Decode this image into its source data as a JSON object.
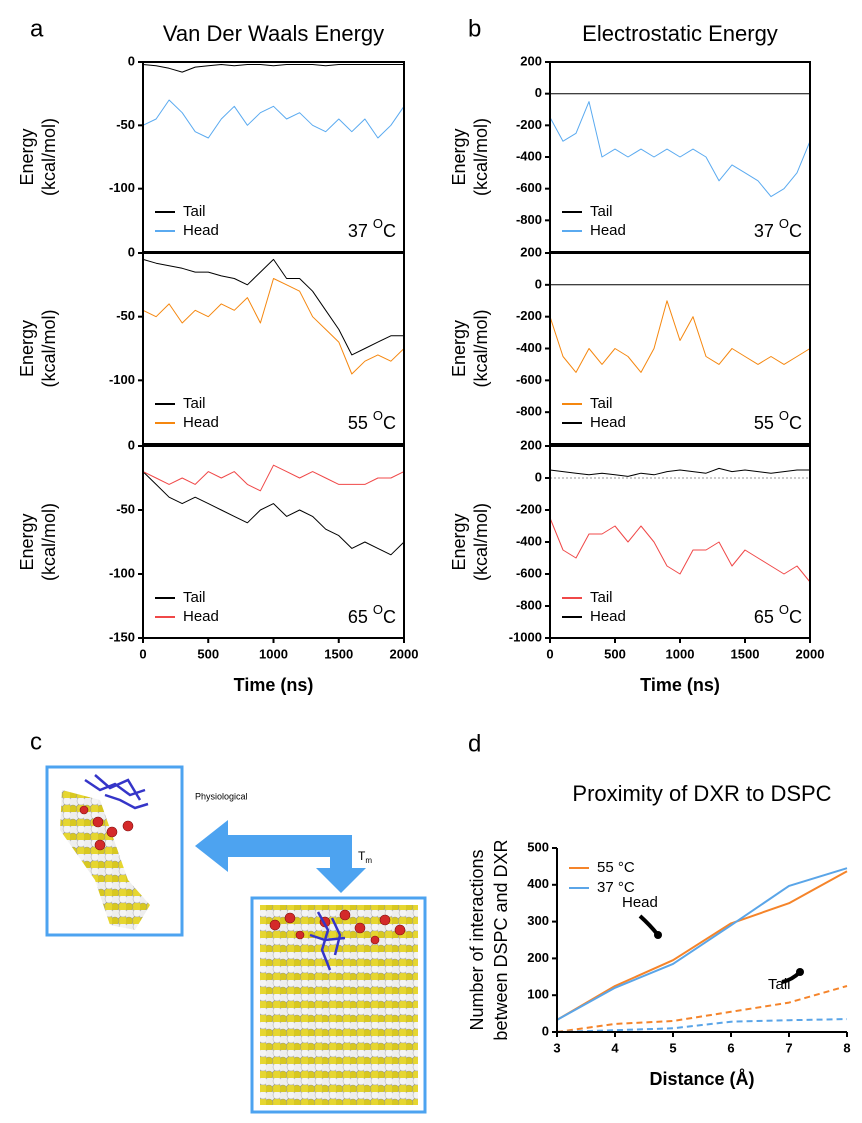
{
  "figure": {
    "panel_labels": [
      "a",
      "b",
      "c",
      "d"
    ],
    "diagram": {
      "top_label": "Physiological",
      "arrow_label": {
        "text": "T",
        "sub": "m"
      }
    }
  },
  "chart_data": [
    {
      "type": "line",
      "title": "Van Der Waals Energy",
      "ylabel": [
        "Energy",
        "(kcal/mol)"
      ],
      "x": [
        0,
        100,
        200,
        300,
        400,
        500,
        600,
        700,
        800,
        900,
        1000,
        1100,
        1200,
        1300,
        1400,
        1500,
        1600,
        1700,
        1800,
        1900,
        2000
      ],
      "xlim": [
        0,
        2000
      ],
      "ylim": [
        -150,
        0
      ],
      "yticks": [
        0,
        -50,
        -100
      ],
      "legend": "lower left",
      "annotation": {
        "value": "37",
        "sup": "O",
        "unit": "C"
      },
      "series": [
        {
          "name": "Tail",
          "color": "#000000",
          "values": [
            -2,
            -3,
            -5,
            -8,
            -4,
            -3,
            -2,
            -3,
            -2,
            -2,
            -3,
            -2,
            -2,
            -2,
            -3,
            -2,
            -2,
            -2,
            -2,
            -2,
            -2
          ]
        },
        {
          "name": "Head",
          "color": "#5aaaf0",
          "values": [
            -50,
            -45,
            -30,
            -40,
            -55,
            -60,
            -45,
            -35,
            -50,
            -40,
            -35,
            -45,
            -40,
            -50,
            -55,
            -45,
            -55,
            -45,
            -60,
            -50,
            -35
          ]
        }
      ]
    },
    {
      "type": "line",
      "ylabel": [
        "Energy",
        "(kcal/mol)"
      ],
      "x": [
        0,
        100,
        200,
        300,
        400,
        500,
        600,
        700,
        800,
        900,
        1000,
        1100,
        1200,
        1300,
        1400,
        1500,
        1600,
        1700,
        1800,
        1900,
        2000
      ],
      "xlim": [
        0,
        2000
      ],
      "ylim": [
        -150,
        0
      ],
      "yticks": [
        0,
        -50,
        -100
      ],
      "legend": "lower left",
      "annotation": {
        "value": "55",
        "sup": "O",
        "unit": "C"
      },
      "series": [
        {
          "name": "Tail",
          "color": "#000000",
          "values": [
            -5,
            -8,
            -10,
            -12,
            -15,
            -15,
            -18,
            -20,
            -25,
            -15,
            -5,
            -20,
            -20,
            -30,
            -45,
            -60,
            -80,
            -75,
            -70,
            -65,
            -65
          ]
        },
        {
          "name": "Head",
          "color": "#f5870f",
          "values": [
            -45,
            -50,
            -40,
            -55,
            -45,
            -50,
            -40,
            -45,
            -35,
            -55,
            -20,
            -25,
            -30,
            -50,
            -60,
            -70,
            -95,
            -85,
            -80,
            -85,
            -75
          ]
        }
      ]
    },
    {
      "type": "line",
      "ylabel": [
        "Energy",
        "(kcal/mol)"
      ],
      "xlabel": "Time (ns)",
      "x": [
        0,
        100,
        200,
        300,
        400,
        500,
        600,
        700,
        800,
        900,
        1000,
        1100,
        1200,
        1300,
        1400,
        1500,
        1600,
        1700,
        1800,
        1900,
        2000
      ],
      "xlim": [
        0,
        2000
      ],
      "xticks": [
        0,
        500,
        1000,
        1500,
        2000
      ],
      "ylim": [
        -150,
        0
      ],
      "yticks": [
        0,
        -50,
        -100,
        -150
      ],
      "legend": "lower left",
      "annotation": {
        "value": "65",
        "sup": "O",
        "unit": "C"
      },
      "series": [
        {
          "name": "Tail",
          "color": "#000000",
          "values": [
            -20,
            -30,
            -40,
            -45,
            -40,
            -45,
            -50,
            -55,
            -60,
            -50,
            -45,
            -55,
            -50,
            -55,
            -65,
            -70,
            -80,
            -75,
            -80,
            -85,
            -75
          ]
        },
        {
          "name": "Head",
          "color": "#f04848",
          "values": [
            -20,
            -25,
            -30,
            -25,
            -30,
            -20,
            -25,
            -20,
            -30,
            -35,
            -15,
            -20,
            -25,
            -20,
            -25,
            -30,
            -30,
            -30,
            -25,
            -25,
            -20
          ]
        }
      ]
    },
    {
      "type": "line",
      "title": "Electrostatic Energy",
      "ylabel": [
        "Energy",
        "(kcal/mol)"
      ],
      "x": [
        0,
        100,
        200,
        300,
        400,
        500,
        600,
        700,
        800,
        900,
        1000,
        1100,
        1200,
        1300,
        1400,
        1500,
        1600,
        1700,
        1800,
        1900,
        2000
      ],
      "xlim": [
        0,
        2000
      ],
      "ylim": [
        -1000,
        200
      ],
      "yticks": [
        200,
        0,
        -200,
        -400,
        -600,
        -800
      ],
      "legend": "lower left",
      "annotation": {
        "value": "37",
        "sup": "O",
        "unit": "C"
      },
      "series": [
        {
          "name": "Tail",
          "color": "#000000",
          "values": [
            0,
            0,
            0,
            0,
            0,
            0,
            0,
            0,
            0,
            0,
            0,
            0,
            0,
            0,
            0,
            0,
            0,
            0,
            0,
            0,
            0
          ]
        },
        {
          "name": "Head",
          "color": "#5aaaf0",
          "values": [
            -150,
            -300,
            -250,
            -50,
            -400,
            -350,
            -400,
            -350,
            -400,
            -350,
            -400,
            -350,
            -400,
            -550,
            -450,
            -500,
            -550,
            -650,
            -600,
            -500,
            -300
          ]
        }
      ]
    },
    {
      "type": "line",
      "ylabel": [
        "Energy",
        "(kcal/mol)"
      ],
      "x": [
        0,
        100,
        200,
        300,
        400,
        500,
        600,
        700,
        800,
        900,
        1000,
        1100,
        1200,
        1300,
        1400,
        1500,
        1600,
        1700,
        1800,
        1900,
        2000
      ],
      "xlim": [
        0,
        2000
      ],
      "ylim": [
        -1000,
        200
      ],
      "yticks": [
        200,
        0,
        -200,
        -400,
        -600,
        -800
      ],
      "legend": "lower left",
      "annotation": {
        "value": "55",
        "sup": "O",
        "unit": "C"
      },
      "series": [
        {
          "name": "Tail",
          "color": "#f5870f",
          "values": [
            -200,
            -450,
            -550,
            -400,
            -500,
            -400,
            -450,
            -550,
            -400,
            -100,
            -350,
            -200,
            -450,
            -500,
            -400,
            -450,
            -500,
            -450,
            -500,
            -450,
            -400
          ]
        },
        {
          "name": "Head",
          "color": "#000000",
          "values": [
            0,
            0,
            0,
            0,
            0,
            0,
            0,
            0,
            0,
            0,
            0,
            0,
            0,
            0,
            0,
            0,
            0,
            0,
            0,
            0,
            0
          ]
        }
      ]
    },
    {
      "type": "line",
      "ylabel": [
        "Energy",
        "(kcal/mol)"
      ],
      "xlabel": "Time (ns)",
      "zero_line": true,
      "x": [
        0,
        100,
        200,
        300,
        400,
        500,
        600,
        700,
        800,
        900,
        1000,
        1100,
        1200,
        1300,
        1400,
        1500,
        1600,
        1700,
        1800,
        1900,
        2000
      ],
      "xlim": [
        0,
        2000
      ],
      "xticks": [
        0,
        500,
        1000,
        1500,
        2000
      ],
      "ylim": [
        -1000,
        200
      ],
      "yticks": [
        200,
        0,
        -200,
        -400,
        -600,
        -800,
        -1000
      ],
      "legend": "lower left",
      "annotation": {
        "value": "65",
        "sup": "O",
        "unit": "C"
      },
      "series": [
        {
          "name": "Tail",
          "color": "#f04848",
          "values": [
            -250,
            -450,
            -500,
            -350,
            -350,
            -300,
            -400,
            -300,
            -400,
            -550,
            -600,
            -450,
            -450,
            -400,
            -550,
            -450,
            -500,
            -550,
            -600,
            -550,
            -650
          ]
        },
        {
          "name": "Head",
          "color": "#000000",
          "values": [
            50,
            40,
            30,
            20,
            30,
            20,
            10,
            30,
            20,
            40,
            50,
            40,
            30,
            60,
            40,
            50,
            40,
            30,
            40,
            50,
            50
          ]
        }
      ]
    },
    {
      "type": "line",
      "title": "Proximity of DXR to DSPC",
      "xlabel": "Distance (Å)",
      "ylabel": [
        "Number of interactions",
        "between DSPC and DXR"
      ],
      "x": [
        3,
        4,
        5,
        6,
        7,
        8
      ],
      "xlim": [
        3,
        8
      ],
      "xticks": [
        3,
        4,
        5,
        6,
        7,
        8
      ],
      "ylim": [
        0,
        500
      ],
      "yticks": [
        0,
        100,
        200,
        300,
        400,
        500
      ],
      "legend": "upper left",
      "annotations": [
        "Head",
        "Tail"
      ],
      "series": [
        {
          "name": "55 °C",
          "color": "#f5842a",
          "values": [
            33,
            125,
            195,
            295,
            350,
            437
          ]
        },
        {
          "name": "37 °C",
          "color": "#5aa5e8",
          "values": [
            33,
            120,
            185,
            290,
            397,
            445
          ]
        },
        {
          "color": "#f5842a",
          "dash": true,
          "values": [
            0,
            22,
            30,
            55,
            80,
            125
          ]
        },
        {
          "color": "#5aa5e8",
          "dash": true,
          "values": [
            0,
            5,
            10,
            28,
            32,
            35
          ]
        }
      ]
    }
  ]
}
